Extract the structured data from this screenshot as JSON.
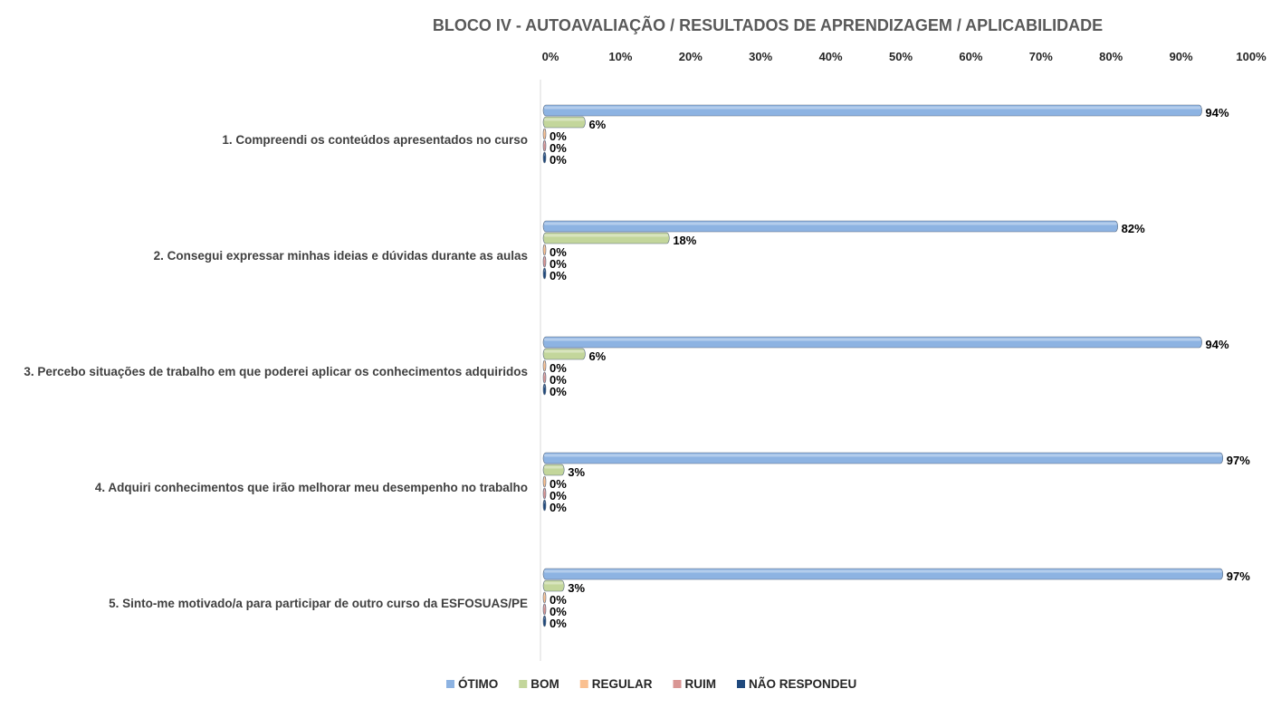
{
  "chart_data": {
    "type": "bar",
    "orientation": "horizontal",
    "title": "BLOCO IV - AUTOAVALIAÇÃO / RESULTADOS DE APRENDIZAGEM / APLICABILIDADE",
    "xlim": [
      0,
      100
    ],
    "x_ticks": [
      "0%",
      "10%",
      "20%",
      "30%",
      "40%",
      "50%",
      "60%",
      "70%",
      "80%",
      "90%",
      "100%"
    ],
    "x_axis_position": "top",
    "grid": false,
    "legend_position": "bottom",
    "categories": [
      "1. Compreendi os conteúdos apresentados no curso",
      "2. Consegui expressar minhas ideias e dúvidas durante as aulas",
      "3. Percebo situações de trabalho em que poderei aplicar os conhecimentos adquiridos",
      "4. Adquiri conhecimentos que irão melhorar meu desempenho no trabalho",
      "5. Sinto-me motivado/a para participar de outro curso da ESFOSUAS/PE"
    ],
    "series": [
      {
        "name": "ÓTIMO",
        "color": "#8db3e2",
        "values": [
          94,
          82,
          94,
          97,
          97
        ]
      },
      {
        "name": "BOM",
        "color": "#c3d69b",
        "values": [
          6,
          18,
          6,
          3,
          3
        ]
      },
      {
        "name": "REGULAR",
        "color": "#fac090",
        "values": [
          0,
          0,
          0,
          0,
          0
        ]
      },
      {
        "name": "RUIM",
        "color": "#d99694",
        "values": [
          0,
          0,
          0,
          0,
          0
        ]
      },
      {
        "name": "NÃO RESPONDEU",
        "color": "#1f497d",
        "values": [
          0,
          0,
          0,
          0,
          0
        ]
      }
    ],
    "value_suffix": "%"
  }
}
